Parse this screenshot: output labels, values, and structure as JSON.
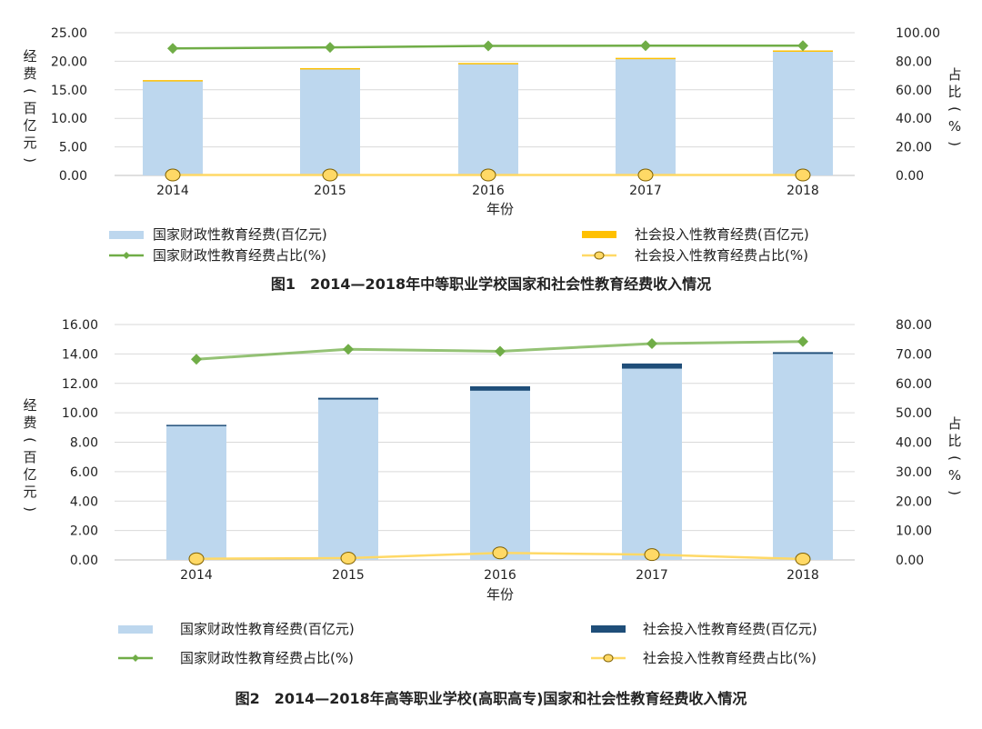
{
  "chart_data": [
    {
      "type": "bar",
      "title": "图1　2014—2018年中等职业学校国家和社会性教育经费收入情况",
      "xlabel": "年份",
      "ylabel": "经费(百亿元)",
      "y2label": "占比(%)",
      "categories": [
        "2014",
        "2015",
        "2016",
        "2017",
        "2018"
      ],
      "ylim": [
        0,
        25
      ],
      "y2lim": [
        0,
        100
      ],
      "yticks": [
        "0.00",
        "5.00",
        "10.00",
        "15.00",
        "20.00",
        "25.00"
      ],
      "y2ticks": [
        "0.00",
        "20.00",
        "40.00",
        "60.00",
        "80.00",
        "100.00"
      ],
      "grid": true,
      "legend_position": "bottom",
      "series": [
        {
          "name": "国家财政性教育经费(百亿元)",
          "kind": "bar",
          "axis": "left",
          "color": "#bdd7ee",
          "values": [
            16.6,
            18.7,
            19.6,
            20.5,
            21.8
          ]
        },
        {
          "name": "社会投入性教育经费(百亿元)",
          "kind": "bar",
          "axis": "left",
          "color": "#ffc000",
          "values": [
            0.1,
            0.1,
            0.1,
            0.1,
            0.1
          ]
        },
        {
          "name": "国家财政性教育经费占比(%)",
          "kind": "line",
          "axis": "right",
          "color": "#70ad47",
          "marker": "diamond",
          "values": [
            89.0,
            89.7,
            90.8,
            90.9,
            90.9
          ]
        },
        {
          "name": "社会投入性教育经费占比(%)",
          "kind": "line",
          "axis": "right",
          "color": "#ffd966",
          "marker": "circle",
          "values": [
            0.3,
            0.3,
            0.3,
            0.3,
            0.3
          ]
        }
      ]
    },
    {
      "type": "bar",
      "title": "图2　2014—2018年高等职业学校(高职高专)国家和社会性教育经费收入情况",
      "xlabel": "年份",
      "ylabel": "经费(百亿元)",
      "y2label": "占比(%)",
      "categories": [
        "2014",
        "2015",
        "2016",
        "2017",
        "2018"
      ],
      "ylim": [
        0,
        16
      ],
      "y2lim": [
        0,
        80
      ],
      "yticks": [
        "0.00",
        "2.00",
        "4.00",
        "6.00",
        "8.00",
        "10.00",
        "12.00",
        "14.00",
        "16.00"
      ],
      "y2ticks": [
        "0.00",
        "10.00",
        "20.00",
        "30.00",
        "40.00",
        "50.00",
        "60.00",
        "70.00",
        "80.00"
      ],
      "grid": true,
      "legend_position": "bottom",
      "series": [
        {
          "name": "国家财政性教育经费(百亿元)",
          "kind": "bar",
          "axis": "left",
          "color": "#bdd7ee",
          "values": [
            9.1,
            10.9,
            11.5,
            13.0,
            14.0
          ]
        },
        {
          "name": "社会投入性教育经费(百亿元)",
          "kind": "bar",
          "axis": "left",
          "color": "#1f4e79",
          "values": [
            0.08,
            0.12,
            0.3,
            0.35,
            0.12
          ]
        },
        {
          "name": "国家财政性教育经费占比(%)",
          "kind": "line",
          "axis": "right",
          "color": "#70ad47",
          "marker": "diamond",
          "values": [
            68.2,
            71.6,
            70.9,
            73.5,
            74.2
          ]
        },
        {
          "name": "社会投入性教育经费占比(%)",
          "kind": "line",
          "axis": "right",
          "color": "#ffd966",
          "marker": "circle",
          "values": [
            0.4,
            0.6,
            2.4,
            1.8,
            0.3
          ]
        }
      ]
    }
  ]
}
